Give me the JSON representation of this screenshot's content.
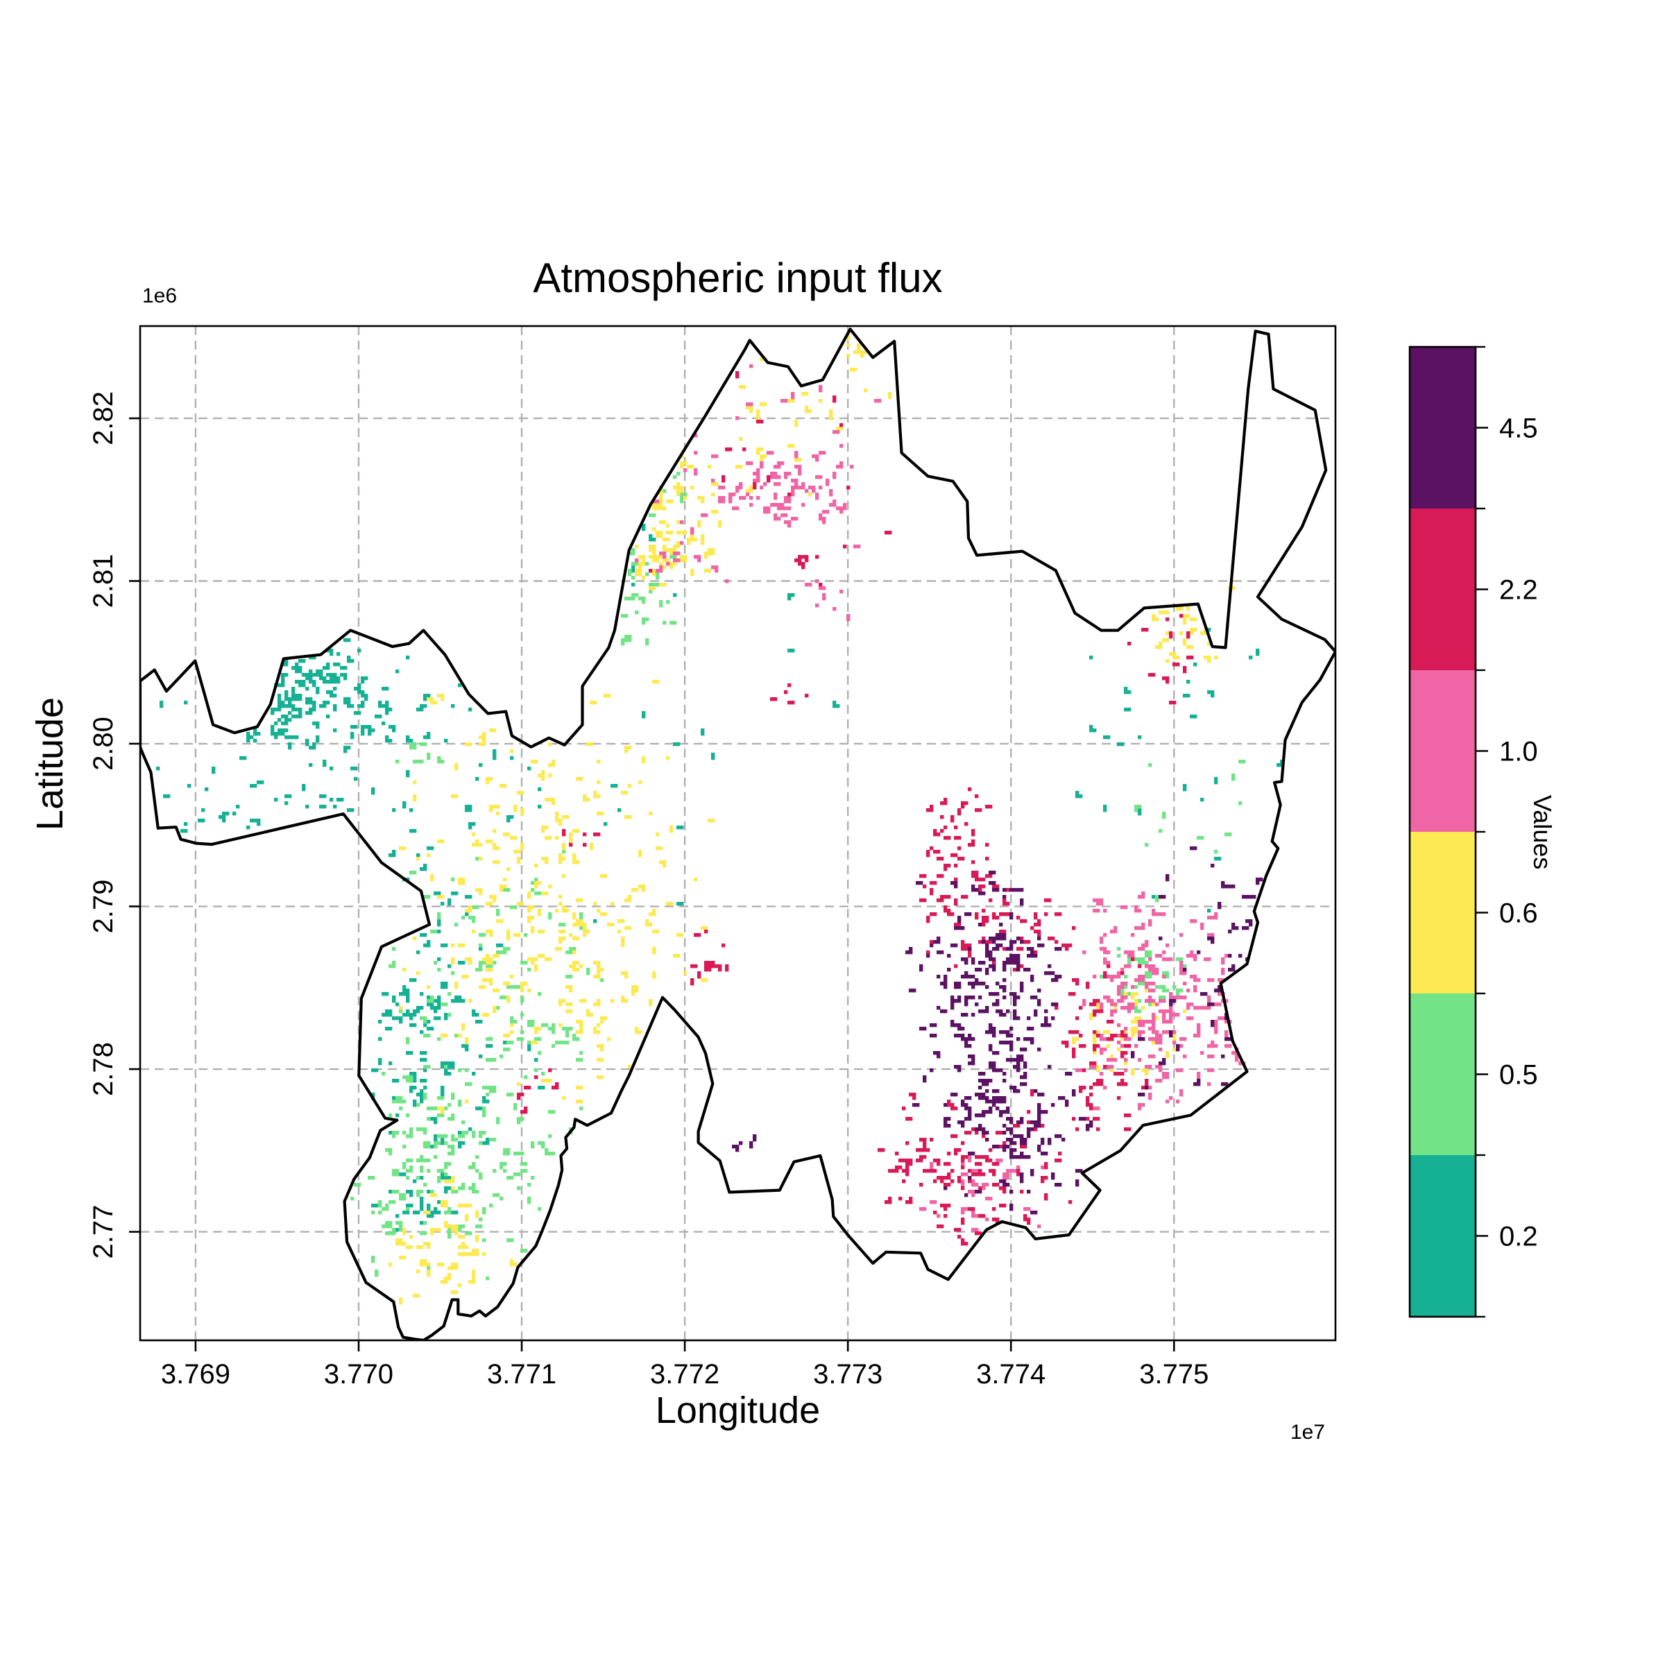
{
  "title": "Atmospheric input flux",
  "axes": {
    "xlabel": "Longitude",
    "ylabel": "Latitude",
    "x_offset_text": "1e7",
    "y_offset_text": "1e6",
    "x_ticks": [
      "3.769",
      "3.770",
      "3.771",
      "3.772",
      "3.773",
      "3.774",
      "3.775"
    ],
    "y_ticks": [
      "2.77",
      "2.78",
      "2.79",
      "2.80",
      "2.81",
      "2.82"
    ],
    "xlim": [
      3.76866,
      3.77599
    ],
    "ylim": [
      2.76333,
      2.82567
    ]
  },
  "colorbar": {
    "label": "Values",
    "ticks_top_to_bottom": [
      "4.5",
      "2.2",
      "1.0",
      "0.6",
      "0.5",
      "0.2"
    ],
    "colors_top_to_bottom": [
      "#5b1263",
      "#d81a56",
      "#ef65a5",
      "#fde951",
      "#72e487",
      "#16b194"
    ]
  },
  "chart_data": {
    "type": "heatmap",
    "title": "Atmospheric input flux",
    "xlabel": "Longitude",
    "ylabel": "Latitude",
    "x_scale_factor": "1e7",
    "y_scale_factor": "1e6",
    "xlim": [
      3.76866,
      3.77599
    ],
    "ylim": [
      2.76333,
      2.82567
    ],
    "x_tick_values": [
      3.769,
      3.77,
      3.771,
      3.772,
      3.773,
      3.774,
      3.775
    ],
    "y_tick_values": [
      2.77,
      2.78,
      2.79,
      2.8,
      2.81,
      2.82
    ],
    "grid": true,
    "legend_position": "right-colorbar",
    "value_classes": [
      {
        "value": "0.2",
        "color": "#16b194"
      },
      {
        "value": "0.5",
        "color": "#72e487"
      },
      {
        "value": "0.6",
        "color": "#fde951"
      },
      {
        "value": "1.0",
        "color": "#ef65a5"
      },
      {
        "value": "2.2",
        "color": "#d81a56"
      },
      {
        "value": "4.5",
        "color": "#5b1263"
      }
    ],
    "region_boundary_frac_xy_from_top_left": [
      [
        0.0,
        0.35
      ],
      [
        0.012,
        0.339
      ],
      [
        0.022,
        0.36
      ],
      [
        0.046,
        0.33
      ],
      [
        0.061,
        0.393
      ],
      [
        0.079,
        0.401
      ],
      [
        0.098,
        0.395
      ],
      [
        0.109,
        0.373
      ],
      [
        0.12,
        0.328
      ],
      [
        0.151,
        0.324
      ],
      [
        0.176,
        0.3
      ],
      [
        0.211,
        0.316
      ],
      [
        0.225,
        0.313
      ],
      [
        0.237,
        0.3
      ],
      [
        0.255,
        0.324
      ],
      [
        0.275,
        0.363
      ],
      [
        0.291,
        0.382
      ],
      [
        0.306,
        0.38
      ],
      [
        0.311,
        0.404
      ],
      [
        0.327,
        0.415
      ],
      [
        0.342,
        0.406
      ],
      [
        0.355,
        0.413
      ],
      [
        0.37,
        0.393
      ],
      [
        0.37,
        0.355
      ],
      [
        0.392,
        0.317
      ],
      [
        0.397,
        0.3
      ],
      [
        0.409,
        0.221
      ],
      [
        0.427,
        0.176
      ],
      [
        0.472,
        0.09
      ],
      [
        0.506,
        0.023
      ],
      [
        0.51,
        0.014
      ],
      [
        0.525,
        0.036
      ],
      [
        0.542,
        0.04
      ],
      [
        0.553,
        0.059
      ],
      [
        0.571,
        0.053
      ],
      [
        0.594,
        0.003
      ],
      [
        0.613,
        0.031
      ],
      [
        0.631,
        0.015
      ],
      [
        0.637,
        0.125
      ],
      [
        0.659,
        0.148
      ],
      [
        0.68,
        0.153
      ],
      [
        0.692,
        0.173
      ],
      [
        0.693,
        0.209
      ],
      [
        0.7,
        0.226
      ],
      [
        0.738,
        0.222
      ],
      [
        0.766,
        0.241
      ],
      [
        0.782,
        0.283
      ],
      [
        0.804,
        0.3
      ],
      [
        0.818,
        0.3
      ],
      [
        0.84,
        0.278
      ],
      [
        0.885,
        0.274
      ],
      [
        0.897,
        0.316
      ],
      [
        0.908,
        0.317
      ],
      [
        0.927,
        0.062
      ],
      [
        0.933,
        0.005
      ],
      [
        0.944,
        0.008
      ],
      [
        0.948,
        0.062
      ],
      [
        0.983,
        0.083
      ],
      [
        0.992,
        0.142
      ],
      [
        0.972,
        0.198
      ],
      [
        0.935,
        0.267
      ],
      [
        0.955,
        0.289
      ],
      [
        0.991,
        0.309
      ],
      [
        1.0,
        0.321
      ],
      [
        0.987,
        0.349
      ],
      [
        0.972,
        0.371
      ],
      [
        0.958,
        0.408
      ],
      [
        0.955,
        0.449
      ],
      [
        0.949,
        0.45
      ],
      [
        0.954,
        0.472
      ],
      [
        0.947,
        0.508
      ],
      [
        0.952,
        0.515
      ],
      [
        0.942,
        0.542
      ],
      [
        0.932,
        0.577
      ],
      [
        0.935,
        0.588
      ],
      [
        0.926,
        0.629
      ],
      [
        0.904,
        0.648
      ],
      [
        0.914,
        0.705
      ],
      [
        0.926,
        0.735
      ],
      [
        0.879,
        0.778
      ],
      [
        0.839,
        0.788
      ],
      [
        0.82,
        0.813
      ],
      [
        0.788,
        0.835
      ],
      [
        0.803,
        0.852
      ],
      [
        0.777,
        0.896
      ],
      [
        0.749,
        0.9
      ],
      [
        0.741,
        0.889
      ],
      [
        0.721,
        0.883
      ],
      [
        0.708,
        0.891
      ],
      [
        0.676,
        0.94
      ],
      [
        0.659,
        0.93
      ],
      [
        0.653,
        0.914
      ],
      [
        0.624,
        0.913
      ],
      [
        0.613,
        0.924
      ],
      [
        0.592,
        0.896
      ],
      [
        0.58,
        0.878
      ],
      [
        0.579,
        0.861
      ],
      [
        0.569,
        0.818
      ],
      [
        0.547,
        0.824
      ],
      [
        0.535,
        0.852
      ],
      [
        0.493,
        0.854
      ],
      [
        0.485,
        0.823
      ],
      [
        0.467,
        0.805
      ],
      [
        0.467,
        0.794
      ],
      [
        0.479,
        0.747
      ],
      [
        0.473,
        0.717
      ],
      [
        0.467,
        0.701
      ],
      [
        0.447,
        0.674
      ],
      [
        0.437,
        0.662
      ],
      [
        0.409,
        0.739
      ],
      [
        0.403,
        0.753
      ],
      [
        0.394,
        0.776
      ],
      [
        0.374,
        0.788
      ],
      [
        0.364,
        0.782
      ],
      [
        0.363,
        0.79
      ],
      [
        0.356,
        0.8
      ],
      [
        0.357,
        0.811
      ],
      [
        0.352,
        0.818
      ],
      [
        0.353,
        0.832
      ],
      [
        0.35,
        0.847
      ],
      [
        0.343,
        0.872
      ],
      [
        0.336,
        0.893
      ],
      [
        0.331,
        0.907
      ],
      [
        0.316,
        0.928
      ],
      [
        0.312,
        0.944
      ],
      [
        0.299,
        0.967
      ],
      [
        0.289,
        0.976
      ],
      [
        0.284,
        0.971
      ],
      [
        0.277,
        0.976
      ],
      [
        0.266,
        0.974
      ],
      [
        0.266,
        0.96
      ],
      [
        0.261,
        0.96
      ],
      [
        0.254,
        0.986
      ],
      [
        0.244,
        0.995
      ],
      [
        0.237,
        1.0
      ],
      [
        0.23,
        0.999
      ],
      [
        0.22,
        0.997
      ],
      [
        0.216,
        0.987
      ],
      [
        0.212,
        0.962
      ],
      [
        0.189,
        0.943
      ],
      [
        0.173,
        0.903
      ],
      [
        0.171,
        0.863
      ],
      [
        0.179,
        0.841
      ],
      [
        0.192,
        0.82
      ],
      [
        0.201,
        0.793
      ],
      [
        0.215,
        0.783
      ],
      [
        0.205,
        0.781
      ],
      [
        0.183,
        0.739
      ],
      [
        0.185,
        0.663
      ],
      [
        0.202,
        0.612
      ],
      [
        0.242,
        0.59
      ],
      [
        0.235,
        0.557
      ],
      [
        0.202,
        0.529
      ],
      [
        0.17,
        0.481
      ],
      [
        0.06,
        0.511
      ],
      [
        0.047,
        0.51
      ],
      [
        0.034,
        0.506
      ],
      [
        0.03,
        0.494
      ],
      [
        0.015,
        0.495
      ],
      [
        0.009,
        0.44
      ],
      [
        0.002,
        0.421
      ],
      [
        0.0,
        0.415
      ]
    ],
    "cell_clusters": [
      {
        "x": 0.124,
        "y": 0.352,
        "sx": 0.03,
        "sy": 0.028,
        "n": 110,
        "c": "0.2"
      },
      {
        "x": 0.086,
        "y": 0.424,
        "sx": 0.058,
        "sy": 0.055,
        "n": 45,
        "c": "0.2"
      },
      {
        "x": 0.205,
        "y": 0.41,
        "sx": 0.07,
        "sy": 0.062,
        "n": 55,
        "c": "0.2"
      },
      {
        "x": 0.35,
        "y": 0.4,
        "sx": 0.11,
        "sy": 0.09,
        "n": 20,
        "c": "0.2"
      },
      {
        "x": 0.243,
        "y": 0.568,
        "sx": 0.035,
        "sy": 0.041,
        "n": 25,
        "c": "0.2"
      },
      {
        "x": 0.231,
        "y": 0.67,
        "sx": 0.017,
        "sy": 0.015,
        "n": 40,
        "c": "0.2"
      },
      {
        "x": 0.243,
        "y": 0.745,
        "sx": 0.052,
        "sy": 0.048,
        "n": 60,
        "c": "0.2"
      },
      {
        "x": 0.235,
        "y": 0.865,
        "sx": 0.02,
        "sy": 0.016,
        "n": 25,
        "c": "0.2"
      },
      {
        "x": 0.88,
        "y": 0.42,
        "sx": 0.05,
        "sy": 0.09,
        "n": 25,
        "c": "0.2"
      },
      {
        "x": 0.388,
        "y": 0.185,
        "sx": 0.03,
        "sy": 0.04,
        "n": 18,
        "c": "0.2"
      },
      {
        "x": 0.277,
        "y": 0.622,
        "sx": 0.052,
        "sy": 0.062,
        "n": 75,
        "c": "0.5"
      },
      {
        "x": 0.254,
        "y": 0.821,
        "sx": 0.052,
        "sy": 0.055,
        "n": 170,
        "c": "0.5"
      },
      {
        "x": 0.338,
        "y": 0.701,
        "sx": 0.018,
        "sy": 0.013,
        "n": 22,
        "c": "0.5"
      },
      {
        "x": 0.408,
        "y": 0.123,
        "sx": 0.026,
        "sy": 0.031,
        "n": 40,
        "c": "0.5"
      },
      {
        "x": 0.408,
        "y": 0.268,
        "sx": 0.018,
        "sy": 0.025,
        "n": 30,
        "c": "0.5"
      },
      {
        "x": 0.377,
        "y": 0.04,
        "sx": 0.023,
        "sy": 0.019,
        "n": 16,
        "c": "0.5"
      },
      {
        "x": 0.835,
        "y": 0.644,
        "sx": 0.018,
        "sy": 0.019,
        "n": 35,
        "c": "0.5"
      },
      {
        "x": 0.87,
        "y": 0.46,
        "sx": 0.025,
        "sy": 0.05,
        "n": 12,
        "c": "0.5"
      },
      {
        "x": 0.235,
        "y": 0.425,
        "sx": 0.012,
        "sy": 0.01,
        "n": 12,
        "c": "0.5"
      },
      {
        "x": 0.341,
        "y": 0.575,
        "sx": 0.066,
        "sy": 0.112,
        "n": 260,
        "c": "0.6"
      },
      {
        "x": 0.263,
        "y": 0.903,
        "sx": 0.029,
        "sy": 0.031,
        "n": 55,
        "c": "0.6"
      },
      {
        "x": 0.434,
        "y": 0.178,
        "sx": 0.026,
        "sy": 0.027,
        "n": 50,
        "c": "0.6"
      },
      {
        "x": 0.435,
        "y": 0.234,
        "sx": 0.023,
        "sy": 0.015,
        "n": 28,
        "c": "0.6"
      },
      {
        "x": 0.469,
        "y": 0.062,
        "sx": 0.081,
        "sy": 0.055,
        "n": 35,
        "c": "0.6"
      },
      {
        "x": 0.828,
        "y": 0.691,
        "sx": 0.026,
        "sy": 0.024,
        "n": 45,
        "c": "0.6"
      },
      {
        "x": 0.877,
        "y": 0.28,
        "sx": 0.018,
        "sy": 0.027,
        "n": 30,
        "c": "0.6"
      },
      {
        "x": 0.602,
        "y": 0.018,
        "sx": 0.009,
        "sy": 0.01,
        "n": 6,
        "c": "0.6"
      },
      {
        "x": 0.973,
        "y": 0.014,
        "sx": 0.006,
        "sy": 0.008,
        "n": 4,
        "c": "0.6"
      },
      {
        "x": 0.533,
        "y": 0.16,
        "sx": 0.028,
        "sy": 0.02,
        "n": 75,
        "c": "1.0"
      },
      {
        "x": 0.498,
        "y": 0.116,
        "sx": 0.081,
        "sy": 0.075,
        "n": 30,
        "c": "1.0"
      },
      {
        "x": 0.315,
        "y": 0.04,
        "sx": 0.016,
        "sy": 0.015,
        "n": 20,
        "c": "1.0"
      },
      {
        "x": 0.853,
        "y": 0.663,
        "sx": 0.035,
        "sy": 0.051,
        "n": 220,
        "c": "1.0"
      },
      {
        "x": 0.695,
        "y": 0.845,
        "sx": 0.03,
        "sy": 0.025,
        "n": 30,
        "c": "1.0"
      },
      {
        "x": 0.44,
        "y": 0.228,
        "sx": 0.015,
        "sy": 0.01,
        "n": 10,
        "c": "1.0"
      },
      {
        "x": 0.57,
        "y": 0.265,
        "sx": 0.012,
        "sy": 0.01,
        "n": 8,
        "c": "1.0"
      },
      {
        "x": 0.682,
        "y": 0.516,
        "sx": 0.015,
        "sy": 0.041,
        "n": 45,
        "c": "2.2"
      },
      {
        "x": 0.713,
        "y": 0.588,
        "sx": 0.035,
        "sy": 0.026,
        "n": 65,
        "c": "2.2"
      },
      {
        "x": 0.695,
        "y": 0.828,
        "sx": 0.041,
        "sy": 0.038,
        "n": 120,
        "c": "2.2"
      },
      {
        "x": 0.804,
        "y": 0.713,
        "sx": 0.02,
        "sy": 0.041,
        "n": 60,
        "c": "2.2"
      },
      {
        "x": 0.52,
        "y": 0.14,
        "sx": 0.06,
        "sy": 0.06,
        "n": 15,
        "c": "2.2"
      },
      {
        "x": 0.556,
        "y": 0.23,
        "sx": 0.006,
        "sy": 0.012,
        "n": 8,
        "c": "2.2"
      },
      {
        "x": 0.855,
        "y": 0.33,
        "sx": 0.015,
        "sy": 0.027,
        "n": 14,
        "c": "2.2"
      },
      {
        "x": 0.89,
        "y": 0.114,
        "sx": 0.01,
        "sy": 0.014,
        "n": 6,
        "c": "2.2"
      },
      {
        "x": 0.536,
        "y": 0.363,
        "sx": 0.012,
        "sy": 0.015,
        "n": 5,
        "c": "2.2"
      },
      {
        "x": 0.475,
        "y": 0.629,
        "sx": 0.01,
        "sy": 0.021,
        "n": 12,
        "c": "2.2"
      },
      {
        "x": 0.33,
        "y": 0.757,
        "sx": 0.014,
        "sy": 0.014,
        "n": 8,
        "c": "2.2"
      },
      {
        "x": 0.37,
        "y": 0.5,
        "sx": 0.012,
        "sy": 0.01,
        "n": 6,
        "c": "2.2"
      },
      {
        "x": 0.707,
        "y": 0.636,
        "sx": 0.032,
        "sy": 0.048,
        "n": 170,
        "c": "4.5"
      },
      {
        "x": 0.724,
        "y": 0.766,
        "sx": 0.038,
        "sy": 0.051,
        "n": 150,
        "c": "4.5"
      },
      {
        "x": 0.904,
        "y": 0.67,
        "sx": 0.035,
        "sy": 0.082,
        "n": 40,
        "c": "4.5"
      },
      {
        "x": 0.503,
        "y": 0.811,
        "sx": 0.006,
        "sy": 0.008,
        "n": 5,
        "c": "4.5"
      }
    ]
  },
  "style": {
    "background": "#ffffff",
    "boundary_color": "#000000",
    "grid_color": "#b0b0b0",
    "spine_color": "#000000"
  }
}
